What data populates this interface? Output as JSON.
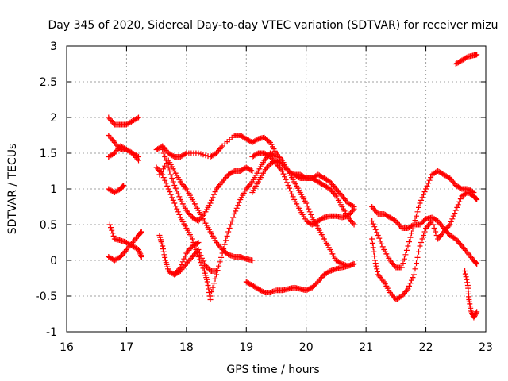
{
  "chart_data": {
    "type": "scatter",
    "title": "Day 345 of 2020, Sidereal Day-to-day VTEC variation (SDTVAR) for receiver mizu",
    "xlabel": "GPS time / hours",
    "ylabel": "SDTVAR / TECUs",
    "xlim": [
      16,
      23
    ],
    "ylim": [
      -1,
      3
    ],
    "xticks": [
      "16",
      "17",
      "18",
      "19",
      "20",
      "21",
      "22",
      "23"
    ],
    "yticks": [
      "-1",
      "-0.5",
      "0",
      "0.5",
      "1",
      "1.5",
      "2",
      "2.5",
      "3"
    ],
    "grid": true,
    "marker": "+",
    "color": "#ff0000",
    "series": [
      {
        "name": "s1",
        "points": [
          [
            16.7,
            2.0
          ],
          [
            16.8,
            1.9
          ],
          [
            16.9,
            1.9
          ],
          [
            17.0,
            1.9
          ],
          [
            17.1,
            1.95
          ],
          [
            17.2,
            2.0
          ]
        ]
      },
      {
        "name": "s2",
        "points": [
          [
            16.7,
            1.75
          ],
          [
            16.8,
            1.65
          ],
          [
            16.9,
            1.55
          ],
          [
            17.0,
            1.55
          ],
          [
            17.1,
            1.5
          ],
          [
            17.2,
            1.45
          ]
        ]
      },
      {
        "name": "s3",
        "points": [
          [
            16.7,
            1.45
          ],
          [
            16.8,
            1.5
          ],
          [
            16.9,
            1.6
          ],
          [
            17.0,
            1.55
          ],
          [
            17.1,
            1.5
          ],
          [
            17.2,
            1.4
          ]
        ]
      },
      {
        "name": "s4",
        "points": [
          [
            16.7,
            1.0
          ],
          [
            16.8,
            0.95
          ],
          [
            16.9,
            1.0
          ],
          [
            16.95,
            1.05
          ]
        ]
      },
      {
        "name": "s5",
        "points": [
          [
            16.72,
            0.5
          ],
          [
            16.8,
            0.3
          ],
          [
            16.9,
            0.28
          ],
          [
            17.0,
            0.25
          ],
          [
            17.1,
            0.2
          ],
          [
            17.2,
            0.15
          ],
          [
            17.25,
            0.05
          ]
        ]
      },
      {
        "name": "s6",
        "points": [
          [
            16.7,
            0.05
          ],
          [
            16.8,
            0.0
          ],
          [
            16.9,
            0.05
          ],
          [
            17.0,
            0.15
          ],
          [
            17.1,
            0.25
          ],
          [
            17.2,
            0.35
          ],
          [
            17.25,
            0.4
          ]
        ]
      },
      {
        "name": "s7",
        "points": [
          [
            17.5,
            1.55
          ],
          [
            17.6,
            1.6
          ],
          [
            17.7,
            1.5
          ],
          [
            17.8,
            1.45
          ],
          [
            17.9,
            1.45
          ],
          [
            18.0,
            1.5
          ],
          [
            18.2,
            1.5
          ],
          [
            18.4,
            1.45
          ],
          [
            18.5,
            1.5
          ],
          [
            18.6,
            1.6
          ],
          [
            18.8,
            1.75
          ],
          [
            18.9,
            1.75
          ],
          [
            19.0,
            1.7
          ],
          [
            19.1,
            1.65
          ],
          [
            19.2,
            1.7
          ],
          [
            19.3,
            1.72
          ],
          [
            19.4,
            1.65
          ],
          [
            19.5,
            1.5
          ],
          [
            19.6,
            1.4
          ],
          [
            19.7,
            1.25
          ],
          [
            19.8,
            1.1
          ],
          [
            19.9,
            0.95
          ],
          [
            20.0,
            0.8
          ],
          [
            20.1,
            0.6
          ],
          [
            20.2,
            0.45
          ],
          [
            20.3,
            0.3
          ],
          [
            20.4,
            0.15
          ],
          [
            20.5,
            0.0
          ],
          [
            20.6,
            -0.05
          ],
          [
            20.7,
            -0.08
          ],
          [
            20.8,
            -0.05
          ]
        ]
      },
      {
        "name": "s8",
        "points": [
          [
            17.5,
            1.3
          ],
          [
            17.6,
            1.2
          ],
          [
            17.7,
            1.0
          ],
          [
            17.8,
            0.8
          ],
          [
            17.9,
            0.6
          ],
          [
            18.0,
            0.45
          ],
          [
            18.1,
            0.3
          ],
          [
            18.2,
            0.05
          ],
          [
            18.3,
            -0.15
          ],
          [
            18.35,
            -0.3
          ],
          [
            18.4,
            -0.55
          ]
        ]
      },
      {
        "name": "s9",
        "points": [
          [
            17.55,
            1.2
          ],
          [
            17.7,
            1.4
          ],
          [
            17.8,
            1.25
          ],
          [
            17.9,
            1.1
          ],
          [
            18.0,
            1.0
          ],
          [
            18.1,
            0.85
          ],
          [
            18.2,
            0.7
          ],
          [
            18.3,
            0.55
          ],
          [
            18.4,
            0.4
          ],
          [
            18.5,
            0.25
          ],
          [
            18.6,
            0.15
          ],
          [
            18.7,
            0.08
          ],
          [
            18.8,
            0.05
          ],
          [
            18.9,
            0.05
          ],
          [
            19.0,
            0.02
          ],
          [
            19.1,
            0.0
          ]
        ]
      },
      {
        "name": "s10",
        "points": [
          [
            17.55,
            0.35
          ],
          [
            17.6,
            0.2
          ],
          [
            17.65,
            0.0
          ],
          [
            17.7,
            -0.15
          ],
          [
            17.8,
            -0.2
          ],
          [
            17.9,
            -0.15
          ],
          [
            18.0,
            -0.05
          ],
          [
            18.1,
            0.05
          ],
          [
            18.2,
            0.15
          ],
          [
            18.3,
            -0.05
          ],
          [
            18.4,
            -0.15
          ],
          [
            18.5,
            -0.15
          ]
        ]
      },
      {
        "name": "s11",
        "points": [
          [
            17.6,
            1.55
          ],
          [
            17.7,
            1.3
          ],
          [
            17.8,
            1.05
          ],
          [
            17.9,
            0.85
          ],
          [
            18.0,
            0.7
          ],
          [
            18.1,
            0.6
          ],
          [
            18.2,
            0.55
          ],
          [
            18.3,
            0.65
          ],
          [
            18.4,
            0.8
          ],
          [
            18.5,
            1.0
          ],
          [
            18.6,
            1.1
          ],
          [
            18.7,
            1.2
          ],
          [
            18.8,
            1.25
          ],
          [
            18.9,
            1.25
          ],
          [
            19.0,
            1.3
          ],
          [
            19.1,
            1.25
          ]
        ]
      },
      {
        "name": "s12",
        "points": [
          [
            17.8,
            -0.2
          ],
          [
            17.9,
            -0.1
          ],
          [
            18.0,
            0.1
          ],
          [
            18.1,
            0.2
          ],
          [
            18.2,
            0.25
          ]
        ]
      },
      {
        "name": "s13",
        "points": [
          [
            18.4,
            -0.5
          ],
          [
            18.5,
            -0.2
          ],
          [
            18.6,
            0.1
          ],
          [
            18.7,
            0.4
          ],
          [
            18.8,
            0.65
          ],
          [
            18.9,
            0.85
          ],
          [
            19.0,
            1.0
          ],
          [
            19.1,
            1.1
          ],
          [
            19.2,
            1.25
          ],
          [
            19.3,
            1.4
          ],
          [
            19.4,
            1.5
          ],
          [
            19.5,
            1.45
          ]
        ]
      },
      {
        "name": "s14",
        "points": [
          [
            19.1,
            0.95
          ],
          [
            19.2,
            1.1
          ],
          [
            19.3,
            1.25
          ],
          [
            19.4,
            1.35
          ],
          [
            19.5,
            1.4
          ],
          [
            19.6,
            1.35
          ],
          [
            19.7,
            1.25
          ],
          [
            19.8,
            1.2
          ],
          [
            19.9,
            1.15
          ],
          [
            20.0,
            1.15
          ],
          [
            20.1,
            1.15
          ],
          [
            20.2,
            1.1
          ],
          [
            20.3,
            1.05
          ],
          [
            20.4,
            1.0
          ],
          [
            20.5,
            0.9
          ],
          [
            20.6,
            0.75
          ],
          [
            20.7,
            0.6
          ],
          [
            20.8,
            0.5
          ]
        ]
      },
      {
        "name": "s15",
        "points": [
          [
            19.1,
            1.45
          ],
          [
            19.2,
            1.5
          ],
          [
            19.3,
            1.5
          ],
          [
            19.4,
            1.45
          ],
          [
            19.5,
            1.35
          ],
          [
            19.6,
            1.25
          ],
          [
            19.7,
            1.05
          ],
          [
            19.8,
            0.85
          ],
          [
            19.9,
            0.7
          ],
          [
            20.0,
            0.55
          ],
          [
            20.1,
            0.5
          ],
          [
            20.2,
            0.55
          ],
          [
            20.3,
            0.6
          ],
          [
            20.4,
            0.62
          ],
          [
            20.5,
            0.62
          ],
          [
            20.6,
            0.6
          ],
          [
            20.7,
            0.62
          ],
          [
            20.8,
            0.72
          ]
        ]
      },
      {
        "name": "s16",
        "points": [
          [
            19.0,
            -0.3
          ],
          [
            19.1,
            -0.35
          ],
          [
            19.2,
            -0.4
          ],
          [
            19.3,
            -0.45
          ],
          [
            19.4,
            -0.45
          ],
          [
            19.5,
            -0.42
          ],
          [
            19.6,
            -0.42
          ],
          [
            19.7,
            -0.4
          ],
          [
            19.8,
            -0.38
          ],
          [
            19.9,
            -0.4
          ],
          [
            20.0,
            -0.42
          ],
          [
            20.1,
            -0.38
          ],
          [
            20.2,
            -0.3
          ],
          [
            20.3,
            -0.2
          ],
          [
            20.4,
            -0.15
          ],
          [
            20.5,
            -0.12
          ],
          [
            20.6,
            -0.1
          ],
          [
            20.7,
            -0.08
          ],
          [
            20.8,
            -0.05
          ]
        ]
      },
      {
        "name": "s17",
        "points": [
          [
            19.8,
            1.2
          ],
          [
            19.9,
            1.2
          ],
          [
            20.0,
            1.15
          ],
          [
            20.1,
            1.15
          ],
          [
            20.2,
            1.2
          ],
          [
            20.3,
            1.15
          ],
          [
            20.4,
            1.1
          ],
          [
            20.5,
            1.0
          ],
          [
            20.6,
            0.9
          ],
          [
            20.7,
            0.8
          ],
          [
            20.8,
            0.75
          ]
        ]
      },
      {
        "name": "s18",
        "points": [
          [
            21.1,
            0.75
          ],
          [
            21.2,
            0.65
          ],
          [
            21.3,
            0.65
          ],
          [
            21.4,
            0.6
          ],
          [
            21.5,
            0.55
          ],
          [
            21.6,
            0.45
          ],
          [
            21.7,
            0.45
          ],
          [
            21.8,
            0.5
          ],
          [
            21.9,
            0.5
          ],
          [
            22.0,
            0.58
          ],
          [
            22.1,
            0.6
          ],
          [
            22.2,
            0.55
          ],
          [
            22.3,
            0.45
          ],
          [
            22.4,
            0.35
          ],
          [
            22.5,
            0.3
          ],
          [
            22.6,
            0.2
          ],
          [
            22.7,
            0.1
          ],
          [
            22.8,
            0.0
          ],
          [
            22.85,
            -0.05
          ]
        ]
      },
      {
        "name": "s19",
        "points": [
          [
            21.1,
            0.55
          ],
          [
            21.2,
            0.35
          ],
          [
            21.3,
            0.15
          ],
          [
            21.4,
            0.0
          ],
          [
            21.5,
            -0.1
          ],
          [
            21.6,
            -0.1
          ],
          [
            21.7,
            0.2
          ],
          [
            21.8,
            0.5
          ],
          [
            21.9,
            0.8
          ],
          [
            22.0,
            1.0
          ],
          [
            22.1,
            1.2
          ],
          [
            22.2,
            1.25
          ],
          [
            22.3,
            1.2
          ],
          [
            22.4,
            1.15
          ],
          [
            22.5,
            1.05
          ],
          [
            22.6,
            1.0
          ],
          [
            22.7,
            1.0
          ],
          [
            22.8,
            0.95
          ]
        ]
      },
      {
        "name": "s20",
        "points": [
          [
            21.1,
            0.3
          ],
          [
            21.15,
            0.0
          ],
          [
            21.2,
            -0.2
          ],
          [
            21.3,
            -0.3
          ],
          [
            21.4,
            -0.45
          ],
          [
            21.5,
            -0.55
          ],
          [
            21.6,
            -0.5
          ],
          [
            21.7,
            -0.4
          ],
          [
            21.8,
            -0.2
          ],
          [
            21.9,
            0.2
          ],
          [
            22.0,
            0.45
          ],
          [
            22.1,
            0.55
          ],
          [
            22.2,
            0.3
          ],
          [
            22.3,
            0.4
          ],
          [
            22.4,
            0.5
          ],
          [
            22.5,
            0.7
          ],
          [
            22.6,
            0.9
          ],
          [
            22.7,
            0.95
          ],
          [
            22.8,
            0.9
          ],
          [
            22.85,
            0.85
          ]
        ]
      },
      {
        "name": "s21",
        "points": [
          [
            22.65,
            -0.15
          ],
          [
            22.7,
            -0.35
          ],
          [
            22.72,
            -0.55
          ],
          [
            22.75,
            -0.7
          ],
          [
            22.8,
            -0.8
          ],
          [
            22.85,
            -0.72
          ]
        ]
      },
      {
        "name": "s22",
        "points": [
          [
            22.5,
            2.75
          ],
          [
            22.6,
            2.8
          ],
          [
            22.7,
            2.85
          ],
          [
            22.8,
            2.87
          ],
          [
            22.85,
            2.88
          ]
        ]
      }
    ]
  }
}
